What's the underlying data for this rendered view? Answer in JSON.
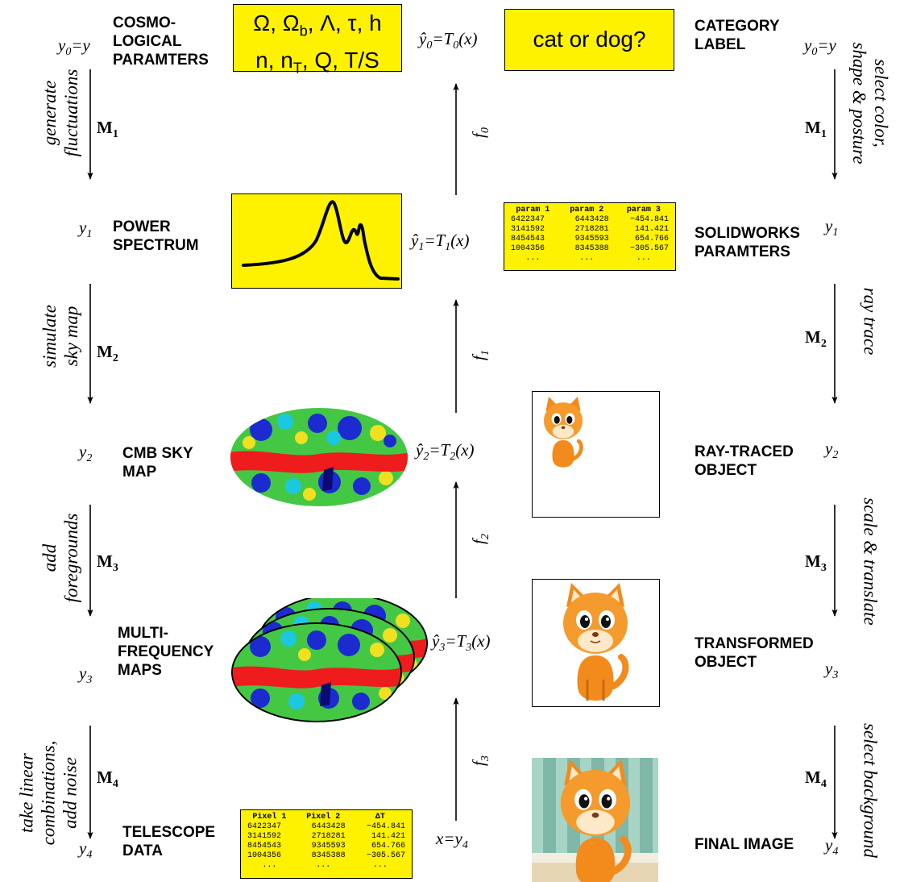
{
  "left": {
    "levels": [
      {
        "y": "y0=y",
        "label": "COSMO-\nLOGICAL\nPARAMTERS"
      },
      {
        "y": "y1",
        "label": "POWER\nSPECTRUM"
      },
      {
        "y": "y2",
        "label": "CMB SKY\nMAP"
      },
      {
        "y": "y3",
        "label": "MULTI-\nFREQUENCY\nMAPS"
      },
      {
        "y": "y4",
        "label": "TELESCOPE\nDATA"
      }
    ],
    "steps": [
      {
        "m": "M1",
        "desc": "generate\nfluctuations"
      },
      {
        "m": "M2",
        "desc": "simulate\nsky map"
      },
      {
        "m": "M3",
        "desc": "add\nforegrounds"
      },
      {
        "m": "M4",
        "desc": "take linear\ncombinations,\nadd noise"
      }
    ]
  },
  "params_box": {
    "line1": "Ω, Ωb, Λ, τ, h",
    "line2": "n, nT, Q, T/S"
  },
  "center": {
    "estimates": [
      "ŷ0=T0(x)",
      "ŷ1=T1(x)",
      "ŷ2=T2(x)",
      "ŷ3=T3(x)",
      "x=y4"
    ],
    "functions": [
      "f0",
      "f1",
      "f2",
      "f3"
    ]
  },
  "category_box": "cat or dog?",
  "solidworks_table": {
    "headers": [
      "param 1",
      "param 2",
      "param 3"
    ],
    "rows": [
      [
        "6422347",
        "6443428",
        "−454.841"
      ],
      [
        "3141592",
        "2718281",
        "141.421"
      ],
      [
        "8454543",
        "9345593",
        "654.766"
      ],
      [
        "1004356",
        "8345388",
        "−305.567"
      ],
      [
        "...",
        "...",
        "..."
      ]
    ]
  },
  "telescope_table": {
    "headers": [
      "Pixel 1",
      "Pixel 2",
      "ΔT"
    ],
    "rows": [
      [
        "6422347",
        "6443428",
        "−454.841"
      ],
      [
        "3141592",
        "2718281",
        "141.421"
      ],
      [
        "8454543",
        "9345593",
        "654.766"
      ],
      [
        "1004356",
        "8345388",
        "−305.567"
      ],
      [
        "...",
        "...",
        "..."
      ]
    ]
  },
  "right": {
    "levels": [
      {
        "y": "y0=y",
        "label": "CATEGORY\nLABEL"
      },
      {
        "y": "y1",
        "label": "SOLIDWORKS\nPARAMTERS"
      },
      {
        "y": "y2",
        "label": "RAY-TRACED\nOBJECT"
      },
      {
        "y": "y3",
        "label": "TRANSFORMED\nOBJECT"
      },
      {
        "y": "y4",
        "label": "FINAL IMAGE"
      }
    ],
    "steps": [
      {
        "m": "M1",
        "desc": "select color,\nshape & posture"
      },
      {
        "m": "M2",
        "desc": "ray trace"
      },
      {
        "m": "M3",
        "desc": "scale & translate"
      },
      {
        "m": "M4",
        "desc": "select background"
      }
    ]
  },
  "colors": {
    "box_fill": "#fff200",
    "map_red": "#ee1c1c",
    "map_green": "#3cc83c",
    "map_blue": "#1c2bd0",
    "cat_orange": "#f28a1c",
    "wall_teal": "#7fb7a8"
  }
}
